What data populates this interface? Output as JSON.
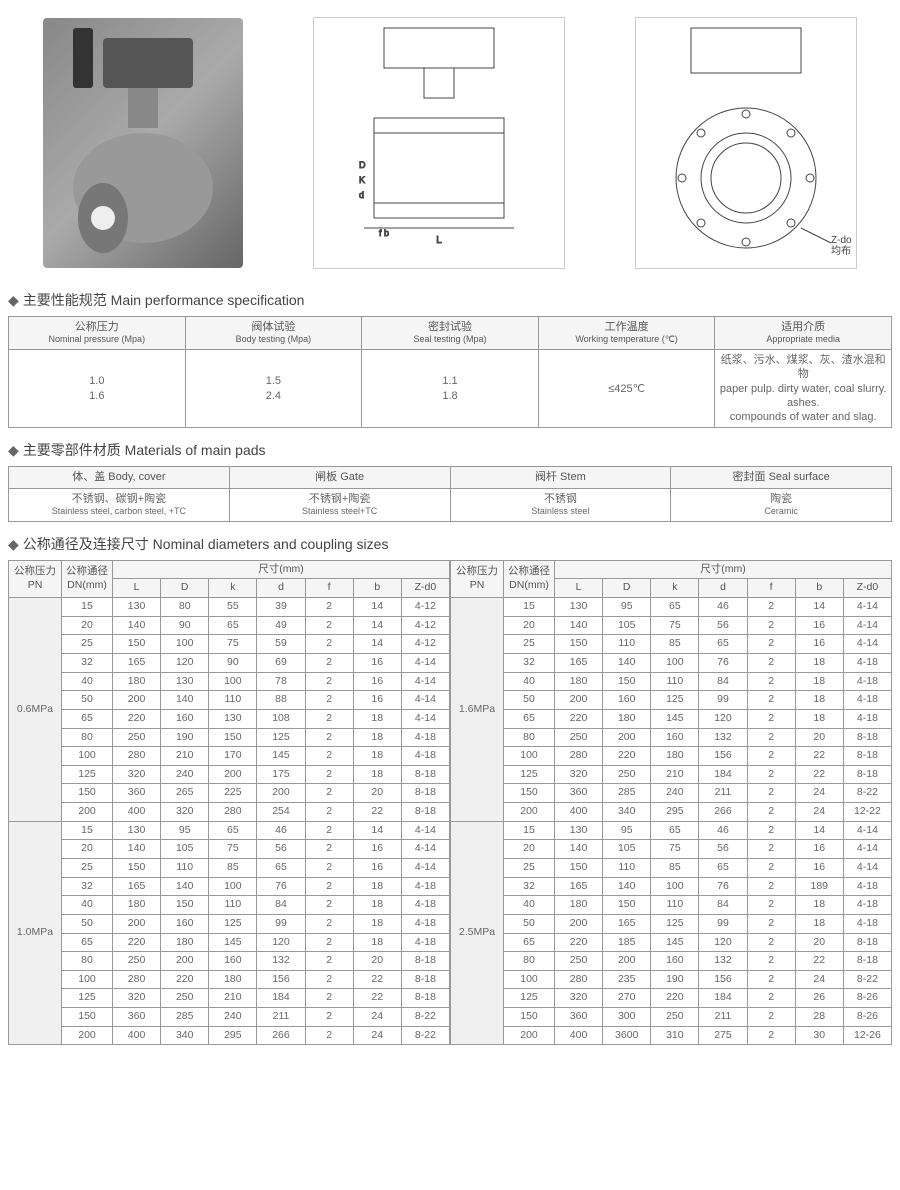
{
  "images": {
    "img1_alt": "Valve product photo",
    "img2_alt": "Side view technical drawing",
    "img3_alt": "Front view technical drawing",
    "img3_label": "Z-do",
    "img3_label_cn": "均布"
  },
  "sections": {
    "spec": "主要性能规范 Main performance specification",
    "materials": "主要零部件材质 Materials of main pads",
    "dimensions": "公称通径及连接尺寸 Nominal diameters and coupling sizes"
  },
  "spec_table": {
    "headers": [
      {
        "cn": "公称压力",
        "en": "Nominal pressure (Mpa)"
      },
      {
        "cn": "阀体试验",
        "en": "Body testing (Mpa)"
      },
      {
        "cn": "密封试验",
        "en": "Seal testing (Mpa)"
      },
      {
        "cn": "工作温度",
        "en": "Working temperature (℃)"
      },
      {
        "cn": "适用介质",
        "en": "Appropriate media"
      }
    ],
    "row": [
      "1.0\n1.6",
      "1.5\n2.4",
      "1.1\n1.8",
      "≤425℃",
      "纸浆、污水、煤浆、灰、渣水混和物\npaper pulp. dirty water, coal slurry. ashes.\ncompounds of water and slag."
    ]
  },
  "mat_table": {
    "headers": [
      {
        "cn": "体、盖",
        "en": "Body, cover"
      },
      {
        "cn": "闸板",
        "en": "Gate"
      },
      {
        "cn": "阀杆",
        "en": "Stem"
      },
      {
        "cn": "密封面",
        "en": "Seal surface"
      }
    ],
    "row": [
      {
        "cn": "不锈钢、碳钢+陶瓷",
        "en": "Stainless steel, carbon steel, +TC"
      },
      {
        "cn": "不锈钢+陶瓷",
        "en": "Stainless steel+TC"
      },
      {
        "cn": "不锈钢",
        "en": "Stainless steel"
      },
      {
        "cn": "陶瓷",
        "en": "Ceramic"
      }
    ]
  },
  "dims": {
    "h_pn_cn": "公称压力",
    "h_pn_en": "PN",
    "h_dn_cn": "公称通径",
    "h_dn_en": "DN(mm)",
    "h_size": "尺寸(mm)",
    "cols": [
      "L",
      "D",
      "k",
      "d",
      "f",
      "b",
      "Z-d0"
    ],
    "groups": [
      {
        "pn": "0.6MPa",
        "rows": [
          [
            "15",
            "130",
            "80",
            "55",
            "39",
            "2",
            "14",
            "4-12"
          ],
          [
            "20",
            "140",
            "90",
            "65",
            "49",
            "2",
            "14",
            "4-12"
          ],
          [
            "25",
            "150",
            "100",
            "75",
            "59",
            "2",
            "14",
            "4-12"
          ],
          [
            "32",
            "165",
            "120",
            "90",
            "69",
            "2",
            "16",
            "4-14"
          ],
          [
            "40",
            "180",
            "130",
            "100",
            "78",
            "2",
            "16",
            "4-14"
          ],
          [
            "50",
            "200",
            "140",
            "110",
            "88",
            "2",
            "16",
            "4-14"
          ],
          [
            "65",
            "220",
            "160",
            "130",
            "108",
            "2",
            "18",
            "4-14"
          ],
          [
            "80",
            "250",
            "190",
            "150",
            "125",
            "2",
            "18",
            "4-18"
          ],
          [
            "100",
            "280",
            "210",
            "170",
            "145",
            "2",
            "18",
            "4-18"
          ],
          [
            "125",
            "320",
            "240",
            "200",
            "175",
            "2",
            "18",
            "8-18"
          ],
          [
            "150",
            "360",
            "265",
            "225",
            "200",
            "2",
            "20",
            "8-18"
          ],
          [
            "200",
            "400",
            "320",
            "280",
            "254",
            "2",
            "22",
            "8-18"
          ]
        ]
      },
      {
        "pn": "1.6MPa",
        "rows": [
          [
            "15",
            "130",
            "95",
            "65",
            "46",
            "2",
            "14",
            "4-14"
          ],
          [
            "20",
            "140",
            "105",
            "75",
            "56",
            "2",
            "16",
            "4-14"
          ],
          [
            "25",
            "150",
            "110",
            "85",
            "65",
            "2",
            "16",
            "4-14"
          ],
          [
            "32",
            "165",
            "140",
            "100",
            "76",
            "2",
            "18",
            "4-18"
          ],
          [
            "40",
            "180",
            "150",
            "110",
            "84",
            "2",
            "18",
            "4-18"
          ],
          [
            "50",
            "200",
            "160",
            "125",
            "99",
            "2",
            "18",
            "4-18"
          ],
          [
            "65",
            "220",
            "180",
            "145",
            "120",
            "2",
            "18",
            "4-18"
          ],
          [
            "80",
            "250",
            "200",
            "160",
            "132",
            "2",
            "20",
            "8-18"
          ],
          [
            "100",
            "280",
            "220",
            "180",
            "156",
            "2",
            "22",
            "8-18"
          ],
          [
            "125",
            "320",
            "250",
            "210",
            "184",
            "2",
            "22",
            "8-18"
          ],
          [
            "150",
            "360",
            "285",
            "240",
            "211",
            "2",
            "24",
            "8-22"
          ],
          [
            "200",
            "400",
            "340",
            "295",
            "266",
            "2",
            "24",
            "12-22"
          ]
        ]
      },
      {
        "pn": "1.0MPa",
        "rows": [
          [
            "15",
            "130",
            "95",
            "65",
            "46",
            "2",
            "14",
            "4-14"
          ],
          [
            "20",
            "140",
            "105",
            "75",
            "56",
            "2",
            "16",
            "4-14"
          ],
          [
            "25",
            "150",
            "110",
            "85",
            "65",
            "2",
            "16",
            "4-14"
          ],
          [
            "32",
            "165",
            "140",
            "100",
            "76",
            "2",
            "18",
            "4-18"
          ],
          [
            "40",
            "180",
            "150",
            "110",
            "84",
            "2",
            "18",
            "4-18"
          ],
          [
            "50",
            "200",
            "160",
            "125",
            "99",
            "2",
            "18",
            "4-18"
          ],
          [
            "65",
            "220",
            "180",
            "145",
            "120",
            "2",
            "18",
            "4-18"
          ],
          [
            "80",
            "250",
            "200",
            "160",
            "132",
            "2",
            "20",
            "8-18"
          ],
          [
            "100",
            "280",
            "220",
            "180",
            "156",
            "2",
            "22",
            "8-18"
          ],
          [
            "125",
            "320",
            "250",
            "210",
            "184",
            "2",
            "22",
            "8-18"
          ],
          [
            "150",
            "360",
            "285",
            "240",
            "211",
            "2",
            "24",
            "8-22"
          ],
          [
            "200",
            "400",
            "340",
            "295",
            "266",
            "2",
            "24",
            "8-22"
          ]
        ]
      },
      {
        "pn": "2.5MPa",
        "rows": [
          [
            "15",
            "130",
            "95",
            "65",
            "46",
            "2",
            "14",
            "4-14"
          ],
          [
            "20",
            "140",
            "105",
            "75",
            "56",
            "2",
            "16",
            "4-14"
          ],
          [
            "25",
            "150",
            "110",
            "85",
            "65",
            "2",
            "16",
            "4-14"
          ],
          [
            "32",
            "165",
            "140",
            "100",
            "76",
            "2",
            "189",
            "4-18"
          ],
          [
            "40",
            "180",
            "150",
            "110",
            "84",
            "2",
            "18",
            "4-18"
          ],
          [
            "50",
            "200",
            "165",
            "125",
            "99",
            "2",
            "18",
            "4-18"
          ],
          [
            "65",
            "220",
            "185",
            "145",
            "120",
            "2",
            "20",
            "8-18"
          ],
          [
            "80",
            "250",
            "200",
            "160",
            "132",
            "2",
            "22",
            "8-18"
          ],
          [
            "100",
            "280",
            "235",
            "190",
            "156",
            "2",
            "24",
            "8-22"
          ],
          [
            "125",
            "320",
            "270",
            "220",
            "184",
            "2",
            "26",
            "8-26"
          ],
          [
            "150",
            "360",
            "300",
            "250",
            "211",
            "2",
            "28",
            "8-26"
          ],
          [
            "200",
            "400",
            "3600",
            "310",
            "275",
            "2",
            "30",
            "12-26"
          ]
        ]
      }
    ]
  },
  "colors": {
    "border": "#999",
    "header_bg": "#f5f5f5",
    "text": "#666"
  }
}
